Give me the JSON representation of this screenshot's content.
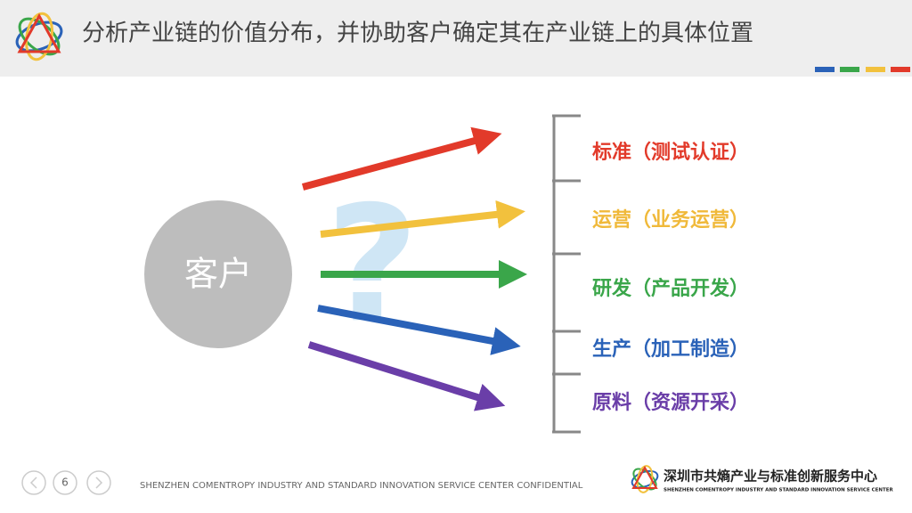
{
  "header": {
    "title": "分析产业链的价值分布，并协助客户确定其在产业链上的具体位置"
  },
  "diagram": {
    "customer": "客户",
    "question": "?",
    "items": [
      "标准（测试认证）",
      "运营（业务运营）",
      "研发（产品开发）",
      "生产（加工制造）",
      "原料（资源开采）"
    ]
  },
  "footer": {
    "page": "6",
    "confidential": "SHENZHEN COMENTROPY INDUSTRY AND STANDARD INNOVATION SERVICE CENTER CONFIDENTIAL",
    "org_name": "深圳市共熵产业与标准创新服务中心",
    "org_name_en": "SHENZHEN COMENTROPY INDUSTRY AND STANDARD INNOVATION SERVICE CENTER"
  }
}
